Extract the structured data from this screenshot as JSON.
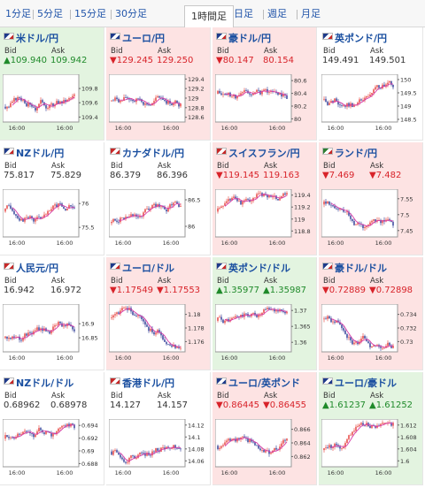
{
  "tabs": [
    "1分足",
    "5分足",
    "15分足",
    "30分足",
    "1時間足",
    "日足",
    "週足",
    "月足"
  ],
  "active_tab": 4,
  "bid_label": "Bid",
  "ask_label": "Ask",
  "pairs": [
    {
      "name": "米ドル/円",
      "trend": "up",
      "bid": "▲109.940",
      "ask": "109.942",
      "flag": [
        "#ffffff",
        "#1e3a8a",
        "#c62828"
      ],
      "xt": [
        "16:00",
        "16:00"
      ],
      "yt": [
        "109.8",
        "109.6",
        "109.4"
      ],
      "ymin": 109.33,
      "ymax": 110.0,
      "seed": 3,
      "dir": 0.6
    },
    {
      "name": "ユーロ/円",
      "trend": "down",
      "bid": "▼129.245",
      "ask": "129.250",
      "flag": [
        "#ffffff",
        "#1e3a8a",
        "#1e3a8a"
      ],
      "xt": [
        "16:00",
        "16:00"
      ],
      "yt": [
        "129.4",
        "129.2",
        "129",
        "128.8",
        "128.6"
      ],
      "ymin": 128.5,
      "ymax": 129.5,
      "seed": 7,
      "dir": 0.2
    },
    {
      "name": "豪ドル/円",
      "trend": "down",
      "bid": "▼80.147",
      "ask": "80.154",
      "flag": [
        "#ffffff",
        "#1e3a8a",
        "#c62828"
      ],
      "xt": [
        "16:00",
        "16:00"
      ],
      "yt": [
        "80.6",
        "80.4",
        "80.2",
        "80"
      ],
      "ymin": 79.95,
      "ymax": 80.7,
      "seed": 11,
      "dir": -0.3
    },
    {
      "name": "英ポンド/円",
      "trend": "flat",
      "bid": "149.491",
      "ask": "149.501",
      "flag": [
        "#ffffff",
        "#1e3a8a",
        "#c62828"
      ],
      "xt": [
        "16:00",
        "16:00"
      ],
      "yt": [
        "150",
        "149.5",
        "149",
        "148.5"
      ],
      "ymin": 148.4,
      "ymax": 150.2,
      "seed": 13,
      "dir": 0.1
    },
    {
      "name": "NZドル/円",
      "trend": "flat",
      "bid": "75.817",
      "ask": "75.829",
      "flag": [
        "#ffffff",
        "#1e3a8a",
        "#c62828"
      ],
      "xt": [
        "16:00",
        "16:00"
      ],
      "yt": [
        "76",
        "75.5"
      ],
      "ymin": 75.3,
      "ymax": 76.3,
      "seed": 17,
      "dir": -0.1
    },
    {
      "name": "カナダドル/円",
      "trend": "flat",
      "bid": "86.379",
      "ask": "86.396",
      "flag": [
        "#ffffff",
        "#c62828",
        "#c62828"
      ],
      "xt": [
        "16:00",
        "16:00"
      ],
      "yt": [
        "86.5",
        "86"
      ],
      "ymin": 85.8,
      "ymax": 86.7,
      "seed": 19,
      "dir": 0.7
    },
    {
      "name": "スイスフラン/円",
      "trend": "down",
      "bid": "▼119.145",
      "ask": "119.163",
      "flag": [
        "#ffffff",
        "#c62828",
        "#c62828"
      ],
      "xt": [
        "16:00",
        "16:00"
      ],
      "yt": [
        "119.4",
        "119.2",
        "119",
        "118.8"
      ],
      "ymin": 118.7,
      "ymax": 119.5,
      "seed": 23,
      "dir": -0.1
    },
    {
      "name": "ランド/円",
      "trend": "down",
      "bid": "▼7.469",
      "ask": "▼7.482",
      "flag": [
        "#ffffff",
        "#2e7d32",
        "#c62828"
      ],
      "xt": [
        "16:00",
        "16:00"
      ],
      "yt": [
        "7.55",
        "7.5",
        "7.45"
      ],
      "ymin": 7.43,
      "ymax": 7.58,
      "seed": 29,
      "dir": -0.6
    },
    {
      "name": "人民元/円",
      "trend": "flat",
      "bid": "16.942",
      "ask": "16.972",
      "flag": [
        "#ffffff",
        "#c62828",
        "#c62828"
      ],
      "xt": [
        "16:00",
        "16:00"
      ],
      "yt": [
        "16.9",
        "16.85"
      ],
      "ymin": 16.8,
      "ymax": 16.97,
      "seed": 31,
      "dir": 0.7
    },
    {
      "name": "ユーロ/ドル",
      "trend": "down",
      "bid": "▼1.17549",
      "ask": "▼1.17553",
      "flag": [
        "#ffffff",
        "#1e3a8a",
        "#c62828"
      ],
      "xt": [
        "16:00",
        "16:00"
      ],
      "yt": [
        "1.18",
        "1.178",
        "1.176"
      ],
      "ymin": 1.1745,
      "ymax": 1.1815,
      "seed": 37,
      "dir": -0.7
    },
    {
      "name": "英ポンド/ドル",
      "trend": "up",
      "bid": "▲1.35977",
      "ask": "▲1.35987",
      "flag": [
        "#ffffff",
        "#1e3a8a",
        "#c62828"
      ],
      "xt": [
        "16:00",
        "16:00"
      ],
      "yt": [
        "1.37",
        "1.365",
        "1.36"
      ],
      "ymin": 1.357,
      "ymax": 1.372,
      "seed": 41,
      "dir": -0.5
    },
    {
      "name": "豪ドル/ドル",
      "trend": "down",
      "bid": "▼0.72889",
      "ask": "▼0.72898",
      "flag": [
        "#ffffff",
        "#1e3a8a",
        "#c62828"
      ],
      "xt": [
        "16:00",
        "16:00"
      ],
      "yt": [
        "0.734",
        "0.732",
        "0.73"
      ],
      "ymin": 0.7285,
      "ymax": 0.7355,
      "seed": 43,
      "dir": -0.6
    },
    {
      "name": "NZドル/ドル",
      "trend": "flat",
      "bid": "0.68962",
      "ask": "0.68978",
      "flag": [
        "#ffffff",
        "#1e3a8a",
        "#c62828"
      ],
      "xt": [
        "16:00",
        "16:00"
      ],
      "yt": [
        "0.694",
        "0.692",
        "0.69",
        "0.688"
      ],
      "ymin": 0.6875,
      "ymax": 0.695,
      "seed": 47,
      "dir": -0.3
    },
    {
      "name": "香港ドル/円",
      "trend": "flat",
      "bid": "14.127",
      "ask": "14.157",
      "flag": [
        "#ffffff",
        "#c62828",
        "#c62828"
      ],
      "xt": [
        "16:00",
        "16:00"
      ],
      "yt": [
        "14.12",
        "14.1",
        "14.08",
        "14.06"
      ],
      "ymin": 14.05,
      "ymax": 14.13,
      "seed": 53,
      "dir": 0.6
    },
    {
      "name": "ユーロ/英ポンド",
      "trend": "down",
      "bid": "▼0.86445",
      "ask": "▼0.86455",
      "flag": [
        "#ffffff",
        "#1e3a8a",
        "#1e3a8a"
      ],
      "xt": [
        "16:00",
        "16:00"
      ],
      "yt": [
        "0.866",
        "0.864",
        "0.862"
      ],
      "ymin": 0.8605,
      "ymax": 0.8675,
      "seed": 59,
      "dir": 0.2
    },
    {
      "name": "ユーロ/豪ドル",
      "trend": "up",
      "bid": "▲1.61237",
      "ask": "▲1.61252",
      "flag": [
        "#ffffff",
        "#1e3a8a",
        "#1e3a8a"
      ],
      "xt": [
        "16:00",
        "16:00"
      ],
      "yt": [
        "1.612",
        "1.608",
        "1.604",
        "1.6"
      ],
      "ymin": 1.598,
      "ymax": 1.614,
      "seed": 61,
      "dir": 0.5
    }
  ]
}
